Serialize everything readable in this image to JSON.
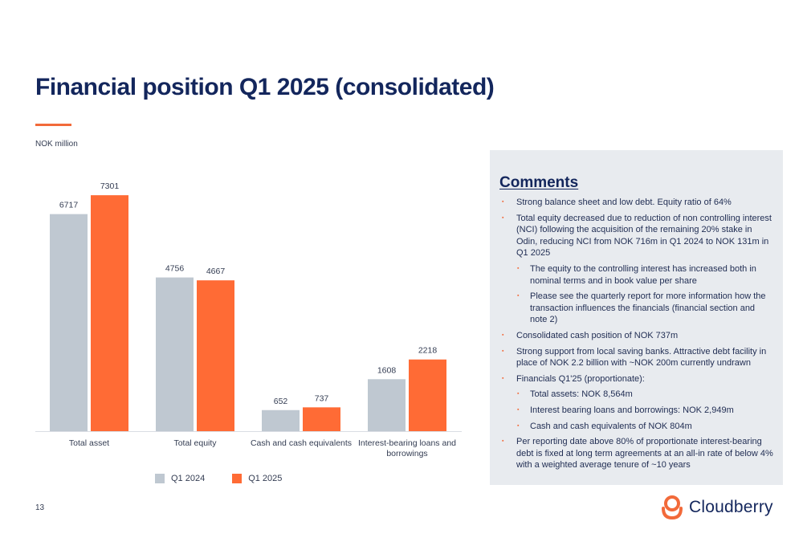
{
  "slide": {
    "title": "Financial position Q1 2025 (consolidated)",
    "unit_label": "NOK million",
    "page_number": "13"
  },
  "colors": {
    "q1_2024": "#bfc8d1",
    "q1_2025": "#ff6b35",
    "accent": "#f26a3a",
    "title": "#13265c"
  },
  "chart_data": {
    "type": "bar",
    "categories": [
      "Total asset",
      "Total equity",
      "Cash and cash equivalents",
      "Interest-bearing loans and borrowings"
    ],
    "series": [
      {
        "name": "Q1 2024",
        "values": [
          6717,
          4756,
          652,
          1608
        ]
      },
      {
        "name": "Q1 2025",
        "values": [
          7301,
          4667,
          737,
          2218
        ]
      }
    ],
    "ylim": [
      0,
      8000
    ],
    "grid": false,
    "legend": "bottom"
  },
  "legend": {
    "items": [
      {
        "label": "Q1 2024"
      },
      {
        "label": "Q1 2025"
      }
    ]
  },
  "comments": {
    "title": "Comments",
    "items": [
      {
        "text": "Strong balance sheet and low debt. Equity ratio of 64%",
        "level": 1
      },
      {
        "text": "Total equity decreased due to reduction of non controlling interest (NCI) following the acquisition of the remaining 20% stake in Odin, reducing NCI from NOK 716m in Q1 2024 to NOK 131m in Q1 2025",
        "level": 1
      },
      {
        "text": "The equity to the controlling interest has increased both in nominal terms and in book value per share",
        "level": 2
      },
      {
        "text": "Please see the quarterly report for more information how the transaction influences the financials (financial section and note 2)",
        "level": 2
      },
      {
        "text": "Consolidated cash position of NOK 737m",
        "level": 1
      },
      {
        "text": "Strong support from local saving banks.  Attractive debt facility in place of NOK 2.2 billion with ~NOK 200m currently undrawn",
        "level": 1
      },
      {
        "text": "Financials Q1'25 (proportionate):",
        "level": 1
      },
      {
        "text": "Total assets: NOK 8,564m",
        "level": 2
      },
      {
        "text": "Interest bearing loans and borrowings: NOK 2,949m",
        "level": 2
      },
      {
        "text": "Cash and cash equivalents of NOK 804m",
        "level": 2
      },
      {
        "text": "Per reporting date above 80% of proportionate interest-bearing debt is fixed at long term agreements at an all-in rate of below 4% with a weighted average tenure of ~10 years",
        "level": 1
      }
    ]
  },
  "logo": {
    "text": "Cloudberry",
    "icon": "cloudberry-logo-icon"
  }
}
